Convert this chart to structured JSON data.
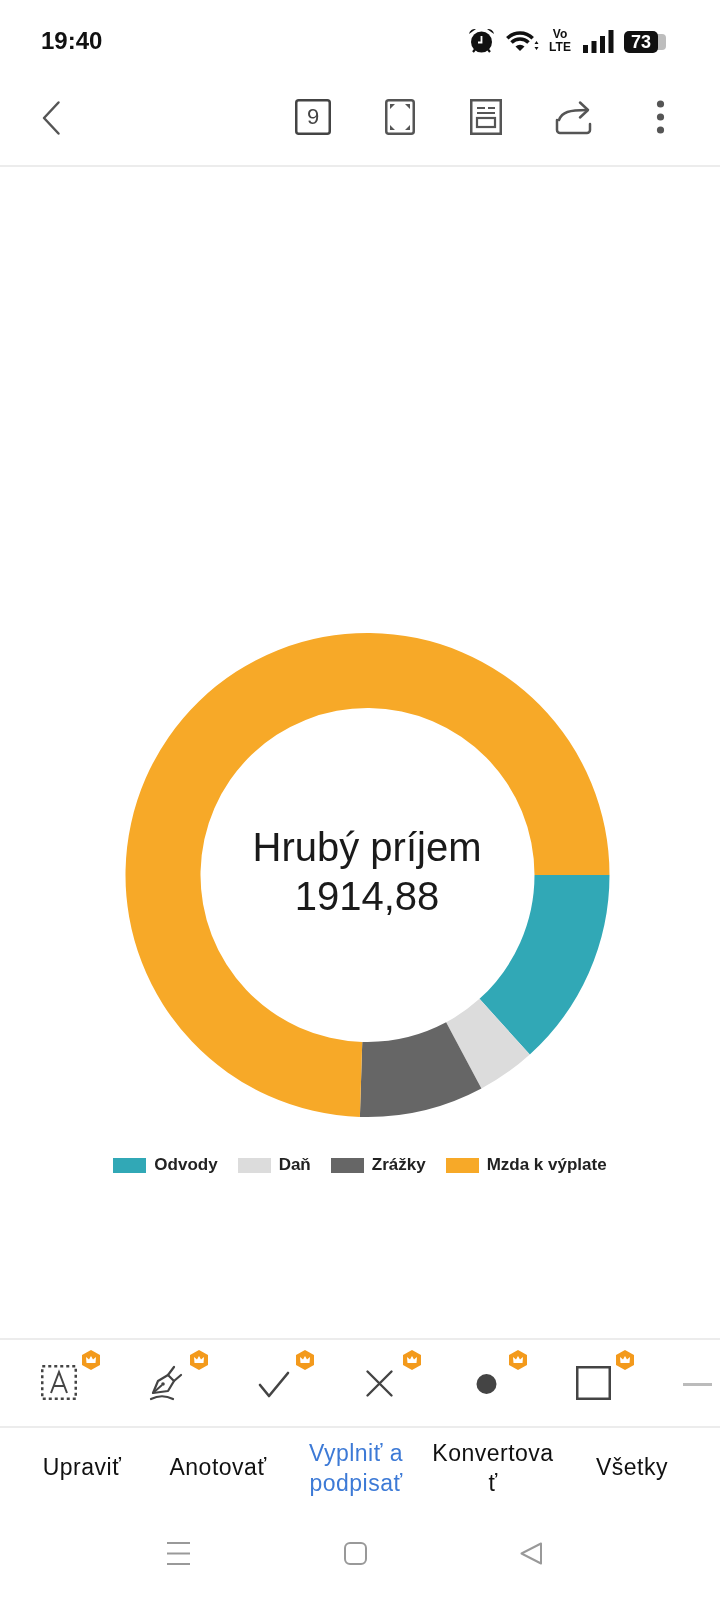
{
  "chart_data": {
    "type": "donut",
    "title": "Hrubý príjem",
    "subtitle": "1914,88",
    "categories": [
      "Odvody",
      "Daň",
      "Zrážky",
      "Mzda k výplate"
    ],
    "values": [
      13.3,
      3.9,
      8.3,
      74.5
    ],
    "colors": [
      "#31a8b6",
      "#dcdcdc",
      "#666666",
      "#f7a928"
    ],
    "legend": "bottom",
    "annotations": [
      "19:40",
      "Vo LTE",
      "73",
      "9",
      "Upraviť",
      "Anotovať",
      "Vyplniť a podpisať",
      "Konvertovať",
      "Všetky"
    ]
  }
}
